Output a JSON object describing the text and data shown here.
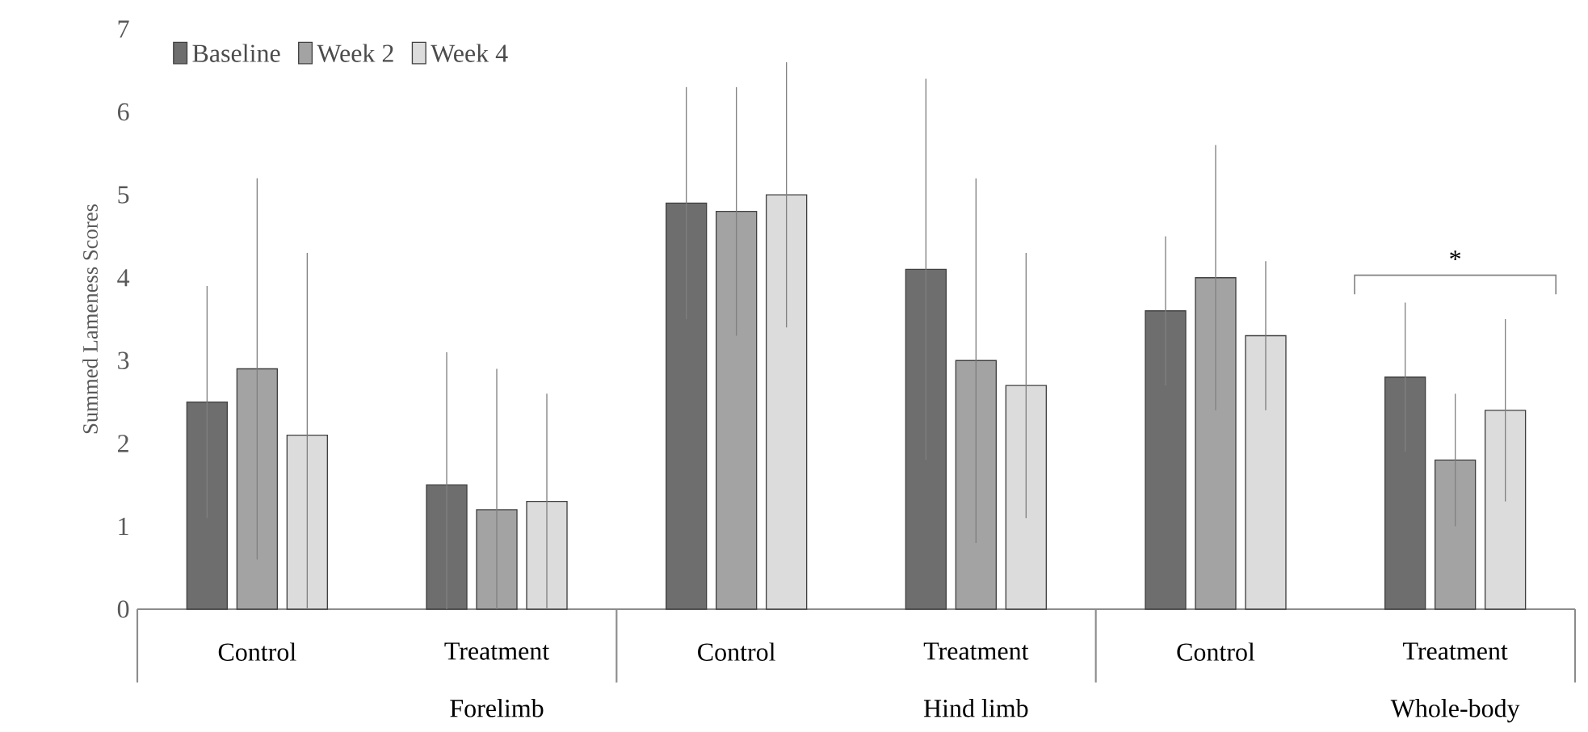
{
  "chart_data": {
    "type": "bar",
    "ylabel": "Summed Lameness Scores",
    "categories": [
      "Control",
      "Treatment",
      "Control",
      "Treatment",
      "Control",
      "Treatment"
    ],
    "series": [
      {
        "name": "Baseline",
        "color": "#6e6e6e",
        "values": [
          2.5,
          1.5,
          4.9,
          4.1,
          3.6,
          2.8
        ],
        "errors": [
          1.4,
          [
            0,
            3.1
          ],
          1.4,
          2.3,
          0.9,
          0.9
        ]
      },
      {
        "name": "Week 2",
        "color": "#a3a3a3",
        "values": [
          2.9,
          1.2,
          4.8,
          3.0,
          4.0,
          1.8
        ],
        "errors": [
          2.3,
          [
            0,
            2.9
          ],
          1.5,
          2.2,
          1.6,
          0.8
        ]
      },
      {
        "name": "Week 4",
        "color": "#dcdcdc",
        "values": [
          2.1,
          1.3,
          5.0,
          2.7,
          3.3,
          2.4
        ],
        "errors": [
          [
            0,
            4.3
          ],
          [
            0,
            2.6
          ],
          1.6,
          1.6,
          0.9,
          1.1
        ]
      }
    ],
    "ylim": [
      0,
      7
    ],
    "yticks": [
      0,
      1,
      2,
      3,
      4,
      5,
      6,
      7
    ],
    "annotations": [
      "*",
      "Forelimb",
      "Hind limb",
      "Whole-body"
    ],
    "legend": "top left",
    "grid": false
  }
}
